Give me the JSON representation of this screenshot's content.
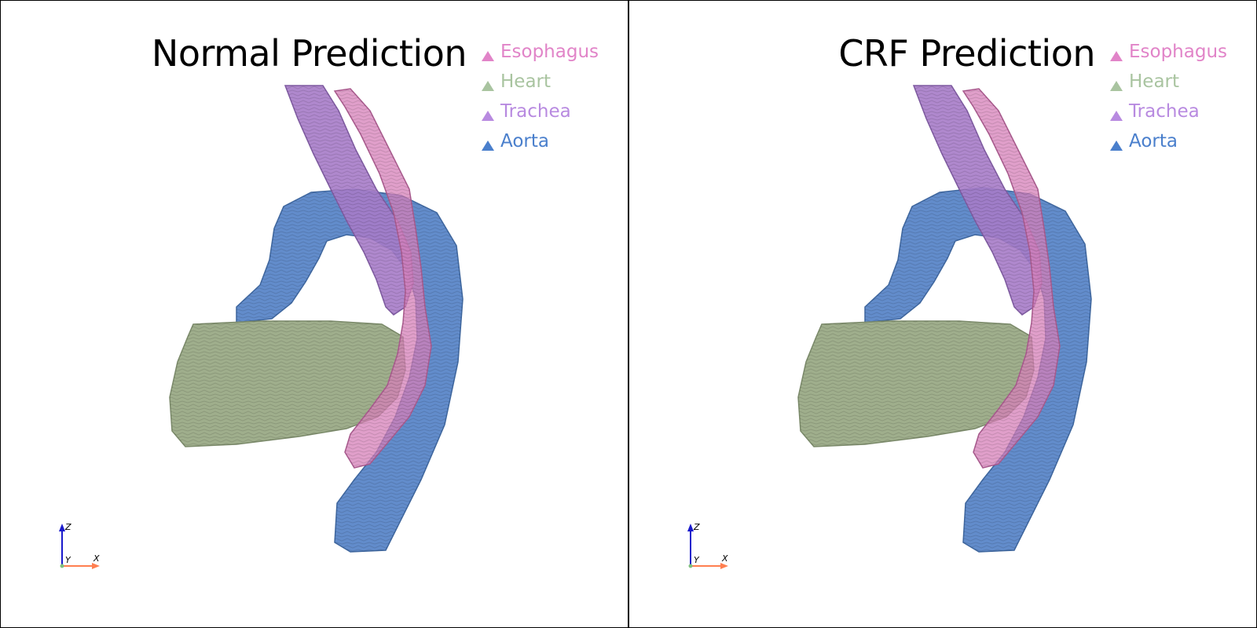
{
  "viewports": [
    {
      "title": "Normal Prediction",
      "legend": [
        {
          "label": "Esophagus",
          "color": "#e184c8",
          "icon": "triangle-marker-icon"
        },
        {
          "label": "Heart",
          "color": "#a9c4a0",
          "icon": "triangle-marker-icon"
        },
        {
          "label": "Trachea",
          "color": "#b88ae0",
          "icon": "triangle-marker-icon"
        },
        {
          "label": "Aorta",
          "color": "#4a7fcc",
          "icon": "triangle-marker-icon"
        }
      ],
      "axes": {
        "z": "Z",
        "y": "Y",
        "x": "X"
      }
    },
    {
      "title": "CRF Prediction",
      "legend": [
        {
          "label": "Esophagus",
          "color": "#e184c8",
          "icon": "triangle-marker-icon"
        },
        {
          "label": "Heart",
          "color": "#a9c4a0",
          "icon": "triangle-marker-icon"
        },
        {
          "label": "Trachea",
          "color": "#b88ae0",
          "icon": "triangle-marker-icon"
        },
        {
          "label": "Aorta",
          "color": "#4a7fcc",
          "icon": "triangle-marker-icon"
        }
      ],
      "axes": {
        "z": "Z",
        "y": "Y",
        "x": "X"
      }
    }
  ],
  "colors": {
    "esophagus_surface": "#d67fb8",
    "heart_surface": "#9fae8c",
    "trachea_surface": "#a67bc8",
    "aorta_surface": "#5a86c8",
    "axis_z": "#1a1acc",
    "axis_x": "#ff7f50",
    "axis_origin": "#7fbf7f"
  }
}
